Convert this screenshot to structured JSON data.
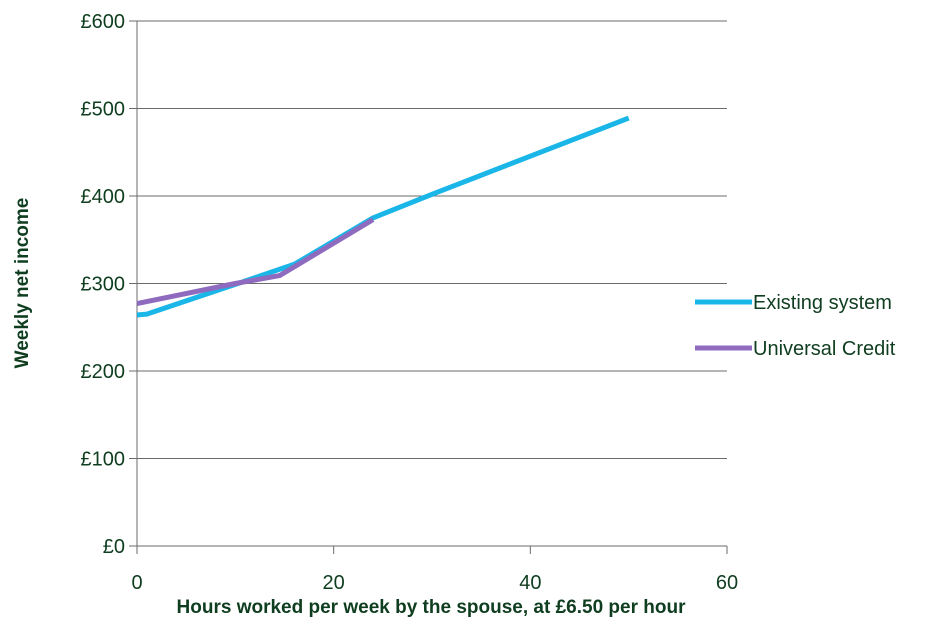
{
  "chart_data": {
    "type": "line",
    "title": "",
    "xlabel": "Hours worked per week by the spouse, at £6.50 per hour",
    "ylabel": "Weekly net income",
    "xlim": [
      0,
      60
    ],
    "ylim": [
      0,
      600
    ],
    "x_ticks": [
      0,
      20,
      40,
      60
    ],
    "y_ticks": [
      0,
      100,
      200,
      300,
      400,
      500,
      600
    ],
    "y_tick_labels": [
      "£0",
      "£100",
      "£200",
      "£300",
      "£400",
      "£500",
      "£600"
    ],
    "grid": "horizontal",
    "legend_position": "right",
    "series": [
      {
        "name": "Existing system",
        "color": "#1ab6e8",
        "x": [
          0,
          1,
          10,
          16,
          24,
          30,
          50
        ],
        "y": [
          264,
          265,
          299,
          322,
          375,
          402,
          489
        ]
      },
      {
        "name": "Universal Credit",
        "color": "#8e6bbf",
        "x": [
          0,
          10,
          14.5,
          24
        ],
        "y": [
          277,
          300,
          309,
          373
        ]
      }
    ]
  }
}
